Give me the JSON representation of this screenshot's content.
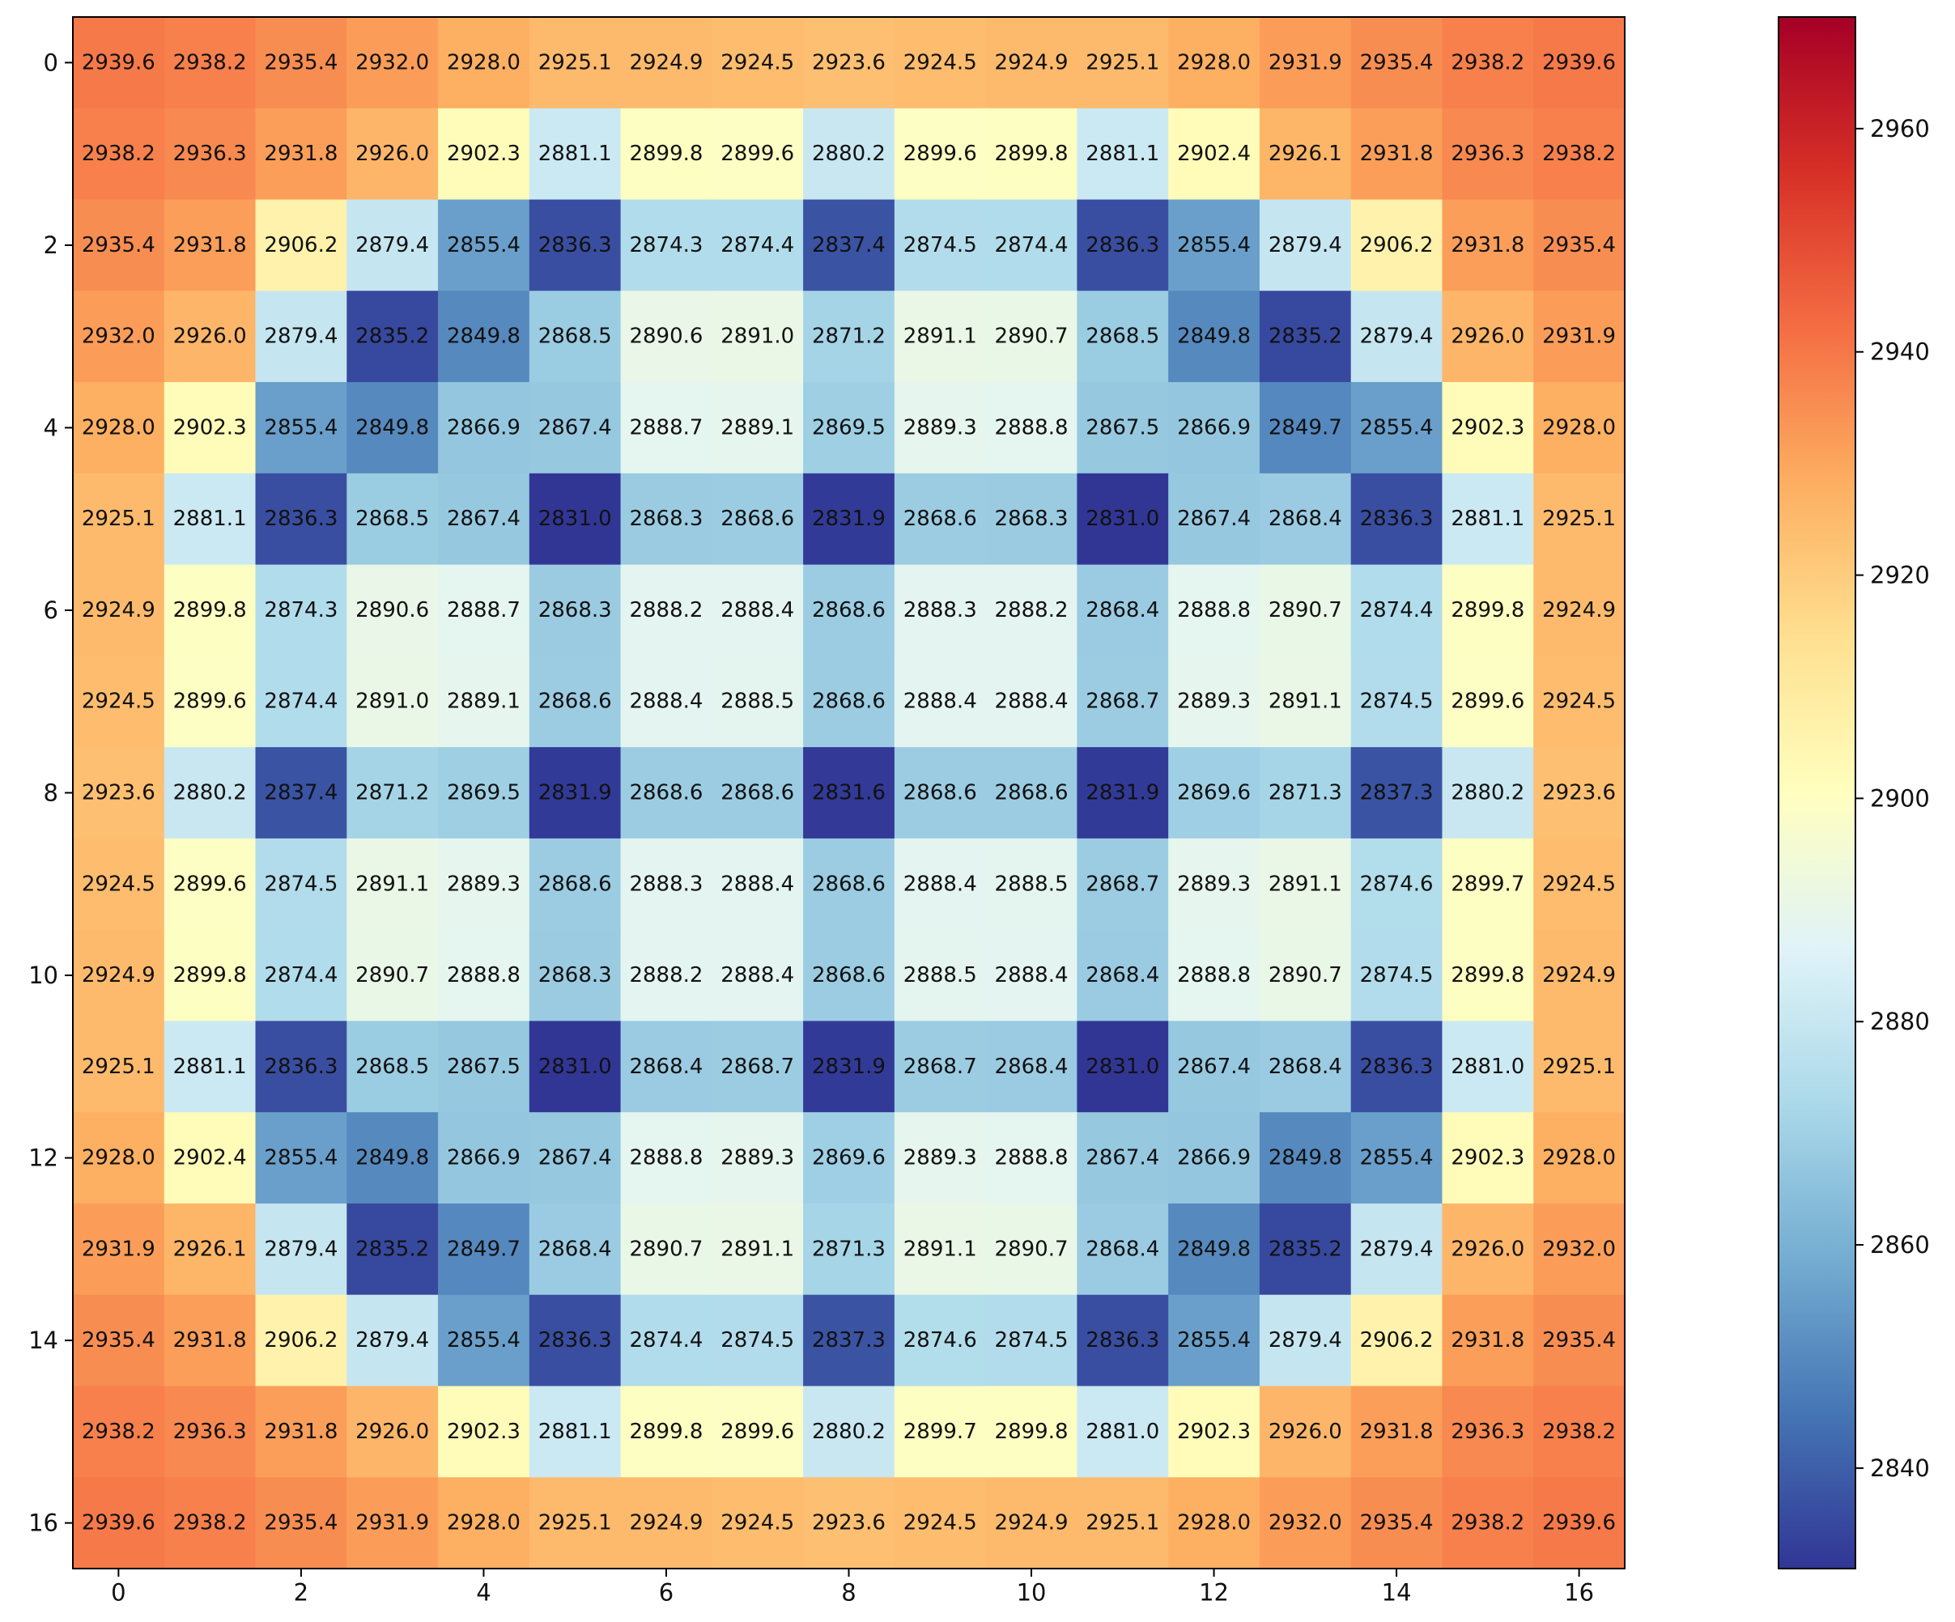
{
  "chart_data": {
    "type": "heatmap",
    "title": "",
    "xlabel": "",
    "ylabel": "",
    "colormap": "RdYlBu_r",
    "colormap_stops": [
      "#313695",
      "#4575b4",
      "#74add1",
      "#abd9e9",
      "#e0f3f8",
      "#ffffbf",
      "#fee090",
      "#fdae61",
      "#f46d43",
      "#d73027",
      "#a50026"
    ],
    "vmin": 2831.0,
    "vmax": 2970.0,
    "x_ticks": [
      0,
      2,
      4,
      6,
      8,
      10,
      12,
      14,
      16
    ],
    "y_ticks": [
      0,
      2,
      4,
      6,
      8,
      10,
      12,
      14,
      16
    ],
    "colorbar_ticks": [
      2840,
      2860,
      2880,
      2900,
      2920,
      2940,
      2960
    ],
    "annotation_format": "1 decimal",
    "values": [
      [
        2939.6,
        2938.2,
        2935.4,
        2932.0,
        2928.0,
        2925.1,
        2924.9,
        2924.5,
        2923.6,
        2924.5,
        2924.9,
        2925.1,
        2928.0,
        2931.9,
        2935.4,
        2938.2,
        2939.6
      ],
      [
        2938.2,
        2936.3,
        2931.8,
        2926.0,
        2902.3,
        2881.1,
        2899.8,
        2899.6,
        2880.2,
        2899.6,
        2899.8,
        2881.1,
        2902.4,
        2926.1,
        2931.8,
        2936.3,
        2938.2
      ],
      [
        2935.4,
        2931.8,
        2906.2,
        2879.4,
        2855.4,
        2836.3,
        2874.3,
        2874.4,
        2837.4,
        2874.5,
        2874.4,
        2836.3,
        2855.4,
        2879.4,
        2906.2,
        2931.8,
        2935.4
      ],
      [
        2932.0,
        2926.0,
        2879.4,
        2835.2,
        2849.8,
        2868.5,
        2890.6,
        2891.0,
        2871.2,
        2891.1,
        2890.7,
        2868.5,
        2849.8,
        2835.2,
        2879.4,
        2926.0,
        2931.9
      ],
      [
        2928.0,
        2902.3,
        2855.4,
        2849.8,
        2866.9,
        2867.4,
        2888.7,
        2889.1,
        2869.5,
        2889.3,
        2888.8,
        2867.5,
        2866.9,
        2849.7,
        2855.4,
        2902.3,
        2928.0
      ],
      [
        2925.1,
        2881.1,
        2836.3,
        2868.5,
        2867.4,
        2831.0,
        2868.3,
        2868.6,
        2831.9,
        2868.6,
        2868.3,
        2831.0,
        2867.4,
        2868.4,
        2836.3,
        2881.1,
        2925.1
      ],
      [
        2924.9,
        2899.8,
        2874.3,
        2890.6,
        2888.7,
        2868.3,
        2888.2,
        2888.4,
        2868.6,
        2888.3,
        2888.2,
        2868.4,
        2888.8,
        2890.7,
        2874.4,
        2899.8,
        2924.9
      ],
      [
        2924.5,
        2899.6,
        2874.4,
        2891.0,
        2889.1,
        2868.6,
        2888.4,
        2888.5,
        2868.6,
        2888.4,
        2888.4,
        2868.7,
        2889.3,
        2891.1,
        2874.5,
        2899.6,
        2924.5
      ],
      [
        2923.6,
        2880.2,
        2837.4,
        2871.2,
        2869.5,
        2831.9,
        2868.6,
        2868.6,
        2831.6,
        2868.6,
        2868.6,
        2831.9,
        2869.6,
        2871.3,
        2837.3,
        2880.2,
        2923.6
      ],
      [
        2924.5,
        2899.6,
        2874.5,
        2891.1,
        2889.3,
        2868.6,
        2888.3,
        2888.4,
        2868.6,
        2888.4,
        2888.5,
        2868.7,
        2889.3,
        2891.1,
        2874.6,
        2899.7,
        2924.5
      ],
      [
        2924.9,
        2899.8,
        2874.4,
        2890.7,
        2888.8,
        2868.3,
        2888.2,
        2888.4,
        2868.6,
        2888.5,
        2888.4,
        2868.4,
        2888.8,
        2890.7,
        2874.5,
        2899.8,
        2924.9
      ],
      [
        2925.1,
        2881.1,
        2836.3,
        2868.5,
        2867.5,
        2831.0,
        2868.4,
        2868.7,
        2831.9,
        2868.7,
        2868.4,
        2831.0,
        2867.4,
        2868.4,
        2836.3,
        2881.0,
        2925.1
      ],
      [
        2928.0,
        2902.4,
        2855.4,
        2849.8,
        2866.9,
        2867.4,
        2888.8,
        2889.3,
        2869.6,
        2889.3,
        2888.8,
        2867.4,
        2866.9,
        2849.8,
        2855.4,
        2902.3,
        2928.0
      ],
      [
        2931.9,
        2926.1,
        2879.4,
        2835.2,
        2849.7,
        2868.4,
        2890.7,
        2891.1,
        2871.3,
        2891.1,
        2890.7,
        2868.4,
        2849.8,
        2835.2,
        2879.4,
        2926.0,
        2932.0
      ],
      [
        2935.4,
        2931.8,
        2906.2,
        2879.4,
        2855.4,
        2836.3,
        2874.4,
        2874.5,
        2837.3,
        2874.6,
        2874.5,
        2836.3,
        2855.4,
        2879.4,
        2906.2,
        2931.8,
        2935.4
      ],
      [
        2938.2,
        2936.3,
        2931.8,
        2926.0,
        2902.3,
        2881.1,
        2899.8,
        2899.6,
        2880.2,
        2899.7,
        2899.8,
        2881.0,
        2902.3,
        2926.0,
        2931.8,
        2936.3,
        2938.2
      ],
      [
        2939.6,
        2938.2,
        2935.4,
        2931.9,
        2928.0,
        2925.1,
        2924.9,
        2924.5,
        2923.6,
        2924.5,
        2924.9,
        2925.1,
        2928.0,
        2932.0,
        2935.4,
        2938.2,
        2939.6
      ]
    ]
  }
}
